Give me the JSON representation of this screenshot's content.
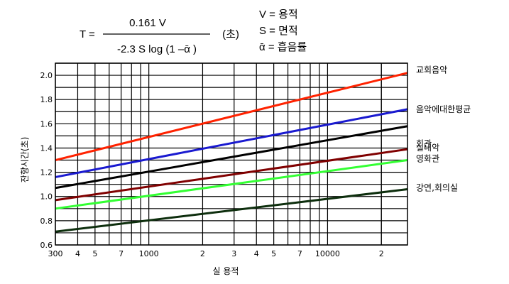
{
  "formula": {
    "lhs": "T =",
    "numerator": "0.161 V",
    "denominator": "-2.3 S log (1 –ᾱ )",
    "unit": "(초)",
    "legend": [
      "V = 용적",
      "S = 면적",
      "ᾱ = 흡음률"
    ]
  },
  "chart_data": {
    "type": "line",
    "xlabel": "실 용적",
    "ylabel": "잔향시간(초)",
    "xscale": "log",
    "xlim": [
      300,
      28000
    ],
    "ylim": [
      0.6,
      2.1
    ],
    "grid": true,
    "y_ticks": [
      0.6,
      0.8,
      1.0,
      1.2,
      1.4,
      1.6,
      1.8,
      2.0
    ],
    "y_tick_labels": [
      "0.6",
      "0.8",
      "1.0",
      "1.2",
      "1.4",
      "1.6",
      "1.8",
      "2.0"
    ],
    "x_ticks": [
      300,
      400,
      500,
      700,
      1000,
      2000,
      3000,
      4000,
      5000,
      7000,
      10000,
      20000
    ],
    "x_tick_labels": [
      "300",
      "4",
      "5",
      "7",
      "1000",
      "2",
      "3",
      "4",
      "5",
      "7",
      "10000",
      "2"
    ],
    "series": [
      {
        "name": "교회음악",
        "color": "#ff2200",
        "x": [
          300,
          28000
        ],
        "y": [
          1.3,
          2.02
        ]
      },
      {
        "name": "음악에대한평균",
        "color": "#1a1ad0",
        "x": [
          300,
          28000
        ],
        "y": [
          1.16,
          1.72
        ]
      },
      {
        "name": "회관",
        "color": "#000000",
        "x": [
          300,
          28000
        ],
        "y": [
          1.07,
          1.58
        ]
      },
      {
        "name": "실내악",
        "color": "#800000",
        "x": [
          300,
          28000
        ],
        "y": [
          0.97,
          1.39
        ]
      },
      {
        "name": "영화관",
        "color": "#33ff33",
        "x": [
          300,
          28000
        ],
        "y": [
          0.9,
          1.3
        ]
      },
      {
        "name": "강연,회의실",
        "color": "#0d2e0d",
        "x": [
          300,
          28000
        ],
        "y": [
          0.71,
          1.06
        ]
      }
    ]
  }
}
